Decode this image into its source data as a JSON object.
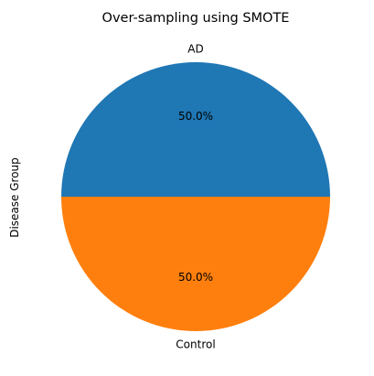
{
  "chart_data": {
    "type": "pie",
    "title": "Over-sampling using SMOTE",
    "ylabel": "Disease Group",
    "labels": [
      "AD",
      "Control"
    ],
    "values": [
      50,
      50
    ],
    "autopct": [
      "50.0%",
      "50.0%"
    ],
    "colors": [
      "#1f77b4",
      "#ff7f0e"
    ],
    "legend": false
  }
}
